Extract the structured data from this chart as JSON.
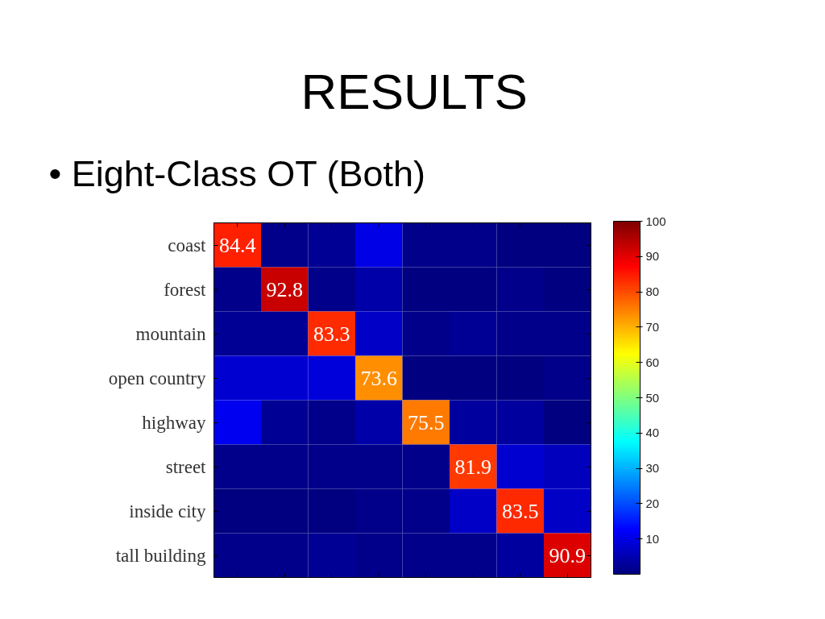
{
  "chart_data": {
    "type": "heatmap",
    "title": "RESULTS",
    "subtitle": "• Eight-Class OT (Both)",
    "categories": [
      null,
      null,
      null,
      null,
      null,
      null,
      null,
      null
    ],
    "y_categories": [
      "coast",
      "forest",
      "mountain",
      "open country",
      "highway",
      "street",
      "inside city",
      "tall building"
    ],
    "cells": [
      [
        84.4,
        1,
        2,
        10,
        1,
        1,
        0,
        0
      ],
      [
        1,
        92.8,
        1,
        4,
        0,
        0,
        1,
        0
      ],
      [
        2,
        2,
        83.3,
        7,
        1,
        2,
        1,
        1
      ],
      [
        8,
        8,
        9,
        73.6,
        0,
        0,
        0,
        1
      ],
      [
        11,
        2,
        1,
        4,
        75.5,
        3,
        3,
        0
      ],
      [
        1,
        1,
        1,
        1,
        1,
        81.9,
        8,
        6
      ],
      [
        0,
        0,
        0,
        1,
        1,
        7,
        83.5,
        7
      ],
      [
        1,
        1,
        2,
        1,
        1,
        1,
        3,
        90.9
      ]
    ],
    "cell_labels": [
      [
        "84.4",
        null,
        null,
        null,
        null,
        null,
        null,
        null
      ],
      [
        null,
        "92.8",
        null,
        null,
        null,
        null,
        null,
        null
      ],
      [
        null,
        null,
        "83.3",
        null,
        null,
        null,
        null,
        null
      ],
      [
        null,
        null,
        null,
        "73.6",
        null,
        null,
        null,
        null
      ],
      [
        null,
        null,
        null,
        null,
        "75.5",
        null,
        null,
        null
      ],
      [
        null,
        null,
        null,
        null,
        null,
        "81.9",
        null,
        null
      ],
      [
        null,
        null,
        null,
        null,
        null,
        null,
        "83.5",
        null
      ],
      [
        null,
        null,
        null,
        null,
        null,
        null,
        null,
        "90.9"
      ]
    ],
    "clim": [
      0,
      100
    ],
    "cticks": [
      10,
      20,
      30,
      40,
      50,
      60,
      70,
      80,
      90,
      100
    ]
  }
}
